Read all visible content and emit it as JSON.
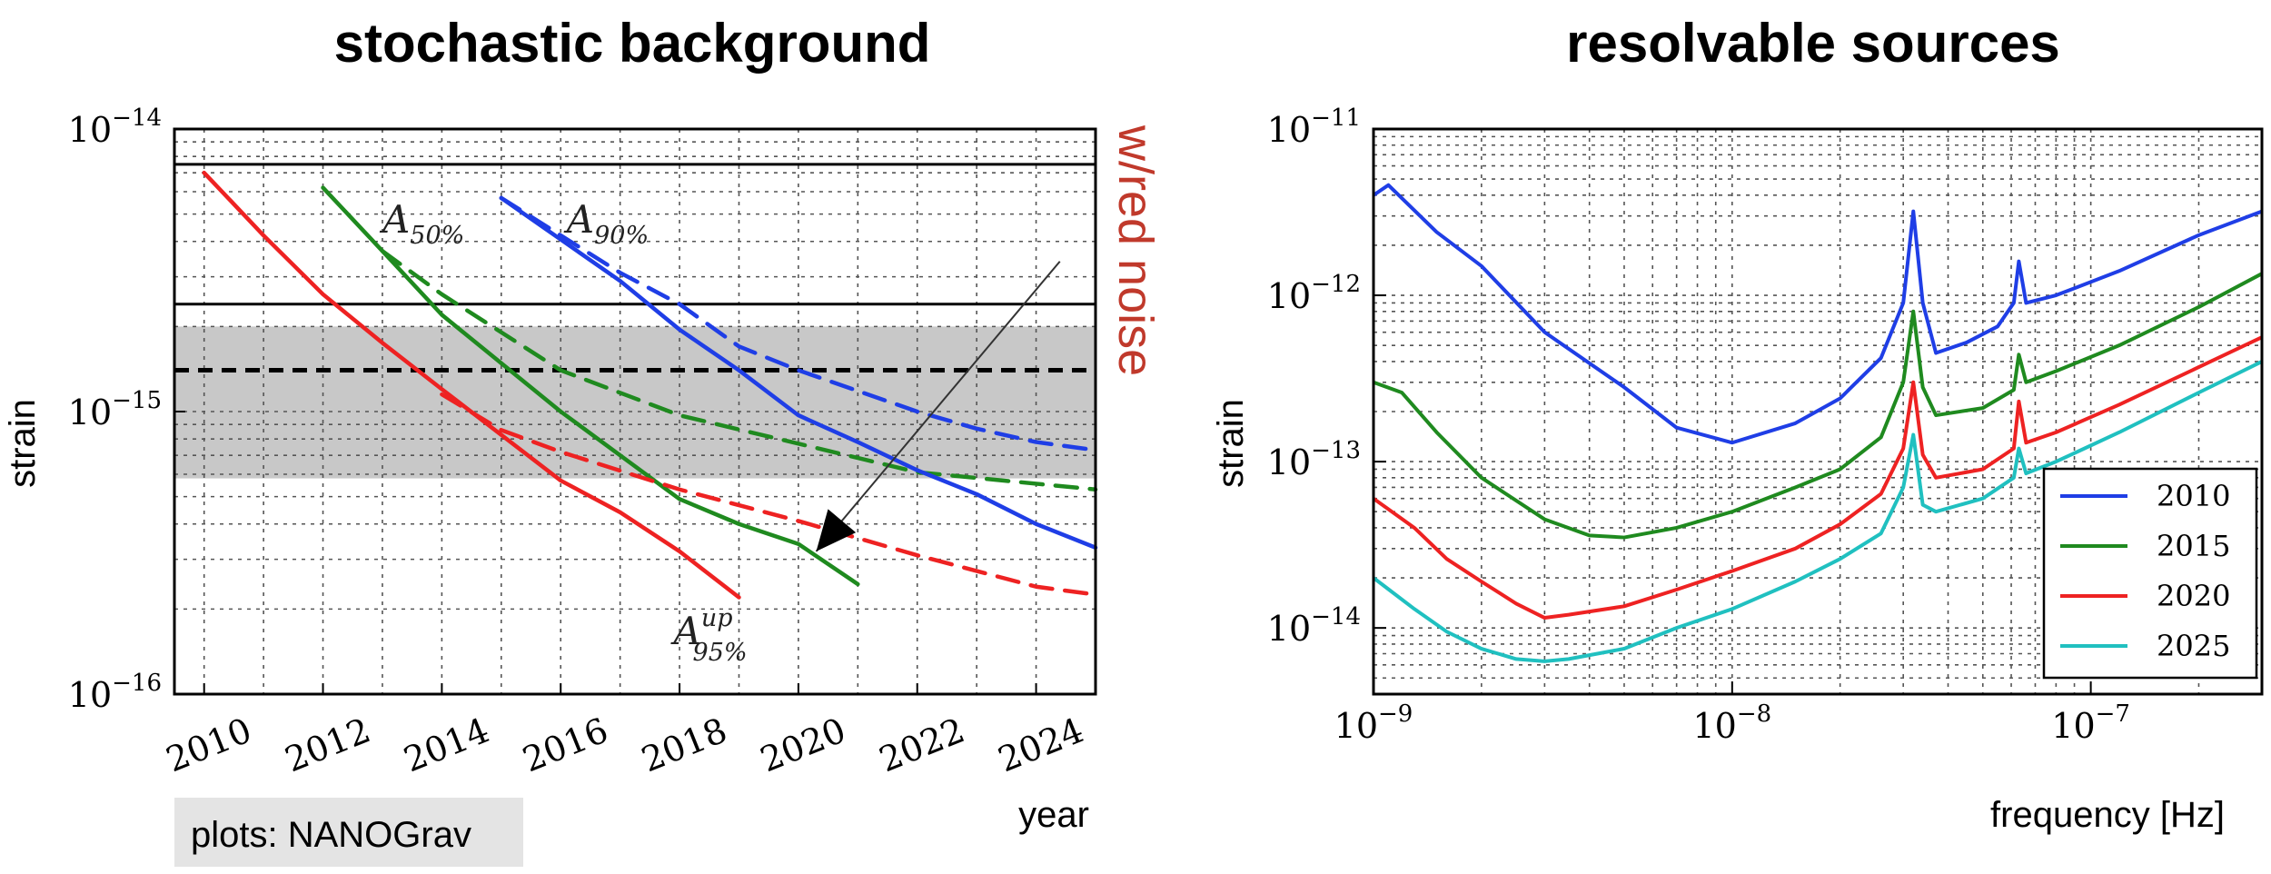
{
  "credit": "plots: NANOGrav",
  "chart_data": [
    {
      "type": "line",
      "title": "stochastic background",
      "xlabel": "year",
      "ylabel": "strain",
      "xlim": [
        2009.5,
        2025
      ],
      "ylim": [
        1e-16,
        1e-14
      ],
      "yscale": "log",
      "grid": true,
      "x_ticks": [
        "2010",
        "2012",
        "2014",
        "2016",
        "2018",
        "2020",
        "2022",
        "2024"
      ],
      "y_ticks": [
        {
          "base": "10",
          "exp": "−14"
        },
        {
          "base": "10",
          "exp": "−15"
        },
        {
          "base": "10",
          "exp": "−16"
        }
      ],
      "band": {
        "y_range": [
          5.8e-16,
          2e-15
        ],
        "color": "#c8c8c8"
      },
      "hlines": [
        {
          "y": 7.5e-15,
          "style": "solid"
        },
        {
          "y": 2.4e-15,
          "style": "solid"
        },
        {
          "y": 1.4e-15,
          "style": "dashed"
        }
      ],
      "series": [
        {
          "label": "A_{50%}",
          "color": "#1f8a1f",
          "style": "solid",
          "x": [
            2012,
            2013,
            2014,
            2016,
            2018,
            2019,
            2020,
            2021
          ],
          "y": [
            6.2e-15,
            3.7e-15,
            2.2e-15,
            1e-15,
            4.9e-16,
            4e-16,
            3.4e-16,
            2.45e-16
          ]
        },
        {
          "color": "#1f8a1f",
          "style": "dashed",
          "x": [
            2013,
            2014,
            2016,
            2018,
            2020,
            2022,
            2025
          ],
          "y": [
            3.7e-15,
            2.6e-15,
            1.4e-15,
            9.7e-16,
            7.7e-16,
            6.1e-16,
            5.3e-16
          ]
        },
        {
          "label": "A_{90%}",
          "color": "#1f3ee6",
          "style": "solid",
          "x": [
            2015,
            2017,
            2018,
            2019,
            2020,
            2021,
            2022,
            2023,
            2024,
            2025
          ],
          "y": [
            5.7e-15,
            2.9e-15,
            1.95e-15,
            1.4e-15,
            9.7e-16,
            7.8e-16,
            6.2e-16,
            5.1e-16,
            4e-16,
            3.3e-16
          ]
        },
        {
          "color": "#1f3ee6",
          "style": "dashed",
          "x": [
            2015,
            2017,
            2018,
            2019,
            2020,
            2022,
            2023,
            2024,
            2025
          ],
          "y": [
            5.7e-15,
            3.1e-15,
            2.4e-15,
            1.7e-15,
            1.4e-15,
            1e-15,
            8.7e-16,
            7.8e-16,
            7.3e-16
          ]
        },
        {
          "label": "A^{up}_{95%}",
          "color": "#ee2222",
          "style": "solid",
          "x": [
            2010,
            2011,
            2012,
            2013,
            2014,
            2016,
            2017,
            2018,
            2019
          ],
          "y": [
            7e-15,
            4.2e-15,
            2.6e-15,
            1.75e-15,
            1.2e-15,
            5.7e-16,
            4.4e-16,
            3.2e-16,
            2.2e-16
          ]
        },
        {
          "color": "#ee2222",
          "style": "dashed",
          "x": [
            2014,
            2015,
            2016,
            2018,
            2020,
            2022,
            2024,
            2025
          ],
          "y": [
            1.15e-15,
            8.6e-16,
            7.2e-16,
            5.3e-16,
            4.1e-16,
            3.1e-16,
            2.4e-16,
            2.25e-16
          ]
        }
      ],
      "annotations": [
        {
          "text": "A",
          "sub": "50%",
          "x": 2013,
          "y": 4.3e-15
        },
        {
          "text": "A",
          "sub": "90%",
          "x": 2016.1,
          "y": 4.3e-15
        },
        {
          "text": "A",
          "sup": "up",
          "sub": "95%",
          "x": 2017.9,
          "y": 1.5e-16
        }
      ],
      "arrow": {
        "from": [
          2024.4,
          3.4e-15
        ],
        "to": [
          2020.3,
          3.2e-16
        ]
      },
      "side_label": "w/red noise"
    },
    {
      "type": "line",
      "title": "resolvable sources",
      "xlabel": "frequency [Hz]",
      "ylabel": "strain",
      "xscale": "log",
      "yscale": "log",
      "xlim": [
        1e-09,
        3e-07
      ],
      "ylim": [
        4e-15,
        1e-11
      ],
      "grid": true,
      "x_ticks": [
        {
          "base": "10",
          "exp": "−9"
        },
        {
          "base": "10",
          "exp": "−8"
        },
        {
          "base": "10",
          "exp": "−7"
        }
      ],
      "y_ticks": [
        {
          "base": "10",
          "exp": "−11"
        },
        {
          "base": "10",
          "exp": "−12"
        },
        {
          "base": "10",
          "exp": "−13"
        },
        {
          "base": "10",
          "exp": "−14"
        }
      ],
      "legend": {
        "position": "bottom-right",
        "entries": [
          "2010",
          "2015",
          "2020",
          "2025"
        ]
      },
      "series": [
        {
          "name": "2010",
          "color": "#1f3ee6",
          "x": [
            1e-09,
            1.1e-09,
            1.5e-09,
            2e-09,
            3e-09,
            5e-09,
            7e-09,
            1e-08,
            1.5e-08,
            2e-08,
            2.6e-08,
            3e-08,
            3.2e-08,
            3.4e-08,
            3.7e-08,
            4.5e-08,
            5.5e-08,
            6.1e-08,
            6.3e-08,
            6.6e-08,
            8e-08,
            1.2e-07,
            2e-07,
            3e-07
          ],
          "y": [
            4e-12,
            4.6e-12,
            2.4e-12,
            1.5e-12,
            6e-13,
            2.8e-13,
            1.6e-13,
            1.3e-13,
            1.7e-13,
            2.4e-13,
            4.2e-13,
            9e-13,
            3.2e-12,
            9e-13,
            4.5e-13,
            5.2e-13,
            6.5e-13,
            9e-13,
            1.6e-12,
            9e-13,
            1e-12,
            1.4e-12,
            2.3e-12,
            3.2e-12
          ]
        },
        {
          "name": "2015",
          "color": "#1f8a1f",
          "x": [
            1e-09,
            1.2e-09,
            1.5e-09,
            2e-09,
            3e-09,
            4e-09,
            5e-09,
            7e-09,
            1e-08,
            1.5e-08,
            2e-08,
            2.6e-08,
            3e-08,
            3.2e-08,
            3.4e-08,
            3.7e-08,
            5e-08,
            6.1e-08,
            6.3e-08,
            6.6e-08,
            8e-08,
            1.2e-07,
            2e-07,
            3e-07
          ],
          "y": [
            3e-13,
            2.6e-13,
            1.5e-13,
            8e-14,
            4.5e-14,
            3.6e-14,
            3.5e-14,
            4e-14,
            5e-14,
            7e-14,
            9e-14,
            1.4e-13,
            3e-13,
            8e-13,
            2.8e-13,
            1.9e-13,
            2.1e-13,
            2.7e-13,
            4.4e-13,
            3e-13,
            3.5e-13,
            5e-13,
            8.5e-13,
            1.35e-12
          ]
        },
        {
          "name": "2020",
          "color": "#ee2222",
          "x": [
            1e-09,
            1.3e-09,
            1.6e-09,
            2e-09,
            2.5e-09,
            3e-09,
            3.5e-09,
            5e-09,
            7e-09,
            1e-08,
            1.5e-08,
            2e-08,
            2.6e-08,
            3e-08,
            3.2e-08,
            3.4e-08,
            3.7e-08,
            5e-08,
            6.1e-08,
            6.3e-08,
            6.6e-08,
            8e-08,
            1.2e-07,
            2e-07,
            3e-07
          ],
          "y": [
            6e-14,
            4e-14,
            2.6e-14,
            1.9e-14,
            1.4e-14,
            1.15e-14,
            1.2e-14,
            1.35e-14,
            1.7e-14,
            2.2e-14,
            3e-14,
            4.2e-14,
            6.4e-14,
            1.2e-13,
            3e-13,
            1.1e-13,
            8e-14,
            9e-14,
            1.2e-13,
            2.3e-13,
            1.3e-13,
            1.5e-13,
            2.2e-13,
            3.7e-13,
            5.6e-13
          ]
        },
        {
          "name": "2025",
          "color": "#20c0c0",
          "x": [
            1e-09,
            1.3e-09,
            1.6e-09,
            2e-09,
            2.5e-09,
            3e-09,
            3.5e-09,
            5e-09,
            7e-09,
            1e-08,
            1.5e-08,
            2e-08,
            2.6e-08,
            3e-08,
            3.2e-08,
            3.4e-08,
            3.7e-08,
            5e-08,
            6.1e-08,
            6.3e-08,
            6.6e-08,
            8e-08,
            1.2e-07,
            2e-07,
            3e-07
          ],
          "y": [
            2e-14,
            1.3e-14,
            9.5e-15,
            7.5e-15,
            6.5e-15,
            6.3e-15,
            6.5e-15,
            7.5e-15,
            1e-14,
            1.3e-14,
            1.9e-14,
            2.6e-14,
            3.7e-14,
            7e-14,
            1.45e-13,
            5.5e-14,
            5e-14,
            6e-14,
            8e-14,
            1.2e-13,
            8.5e-14,
            1e-13,
            1.5e-13,
            2.6e-13,
            4e-13
          ]
        }
      ]
    }
  ]
}
